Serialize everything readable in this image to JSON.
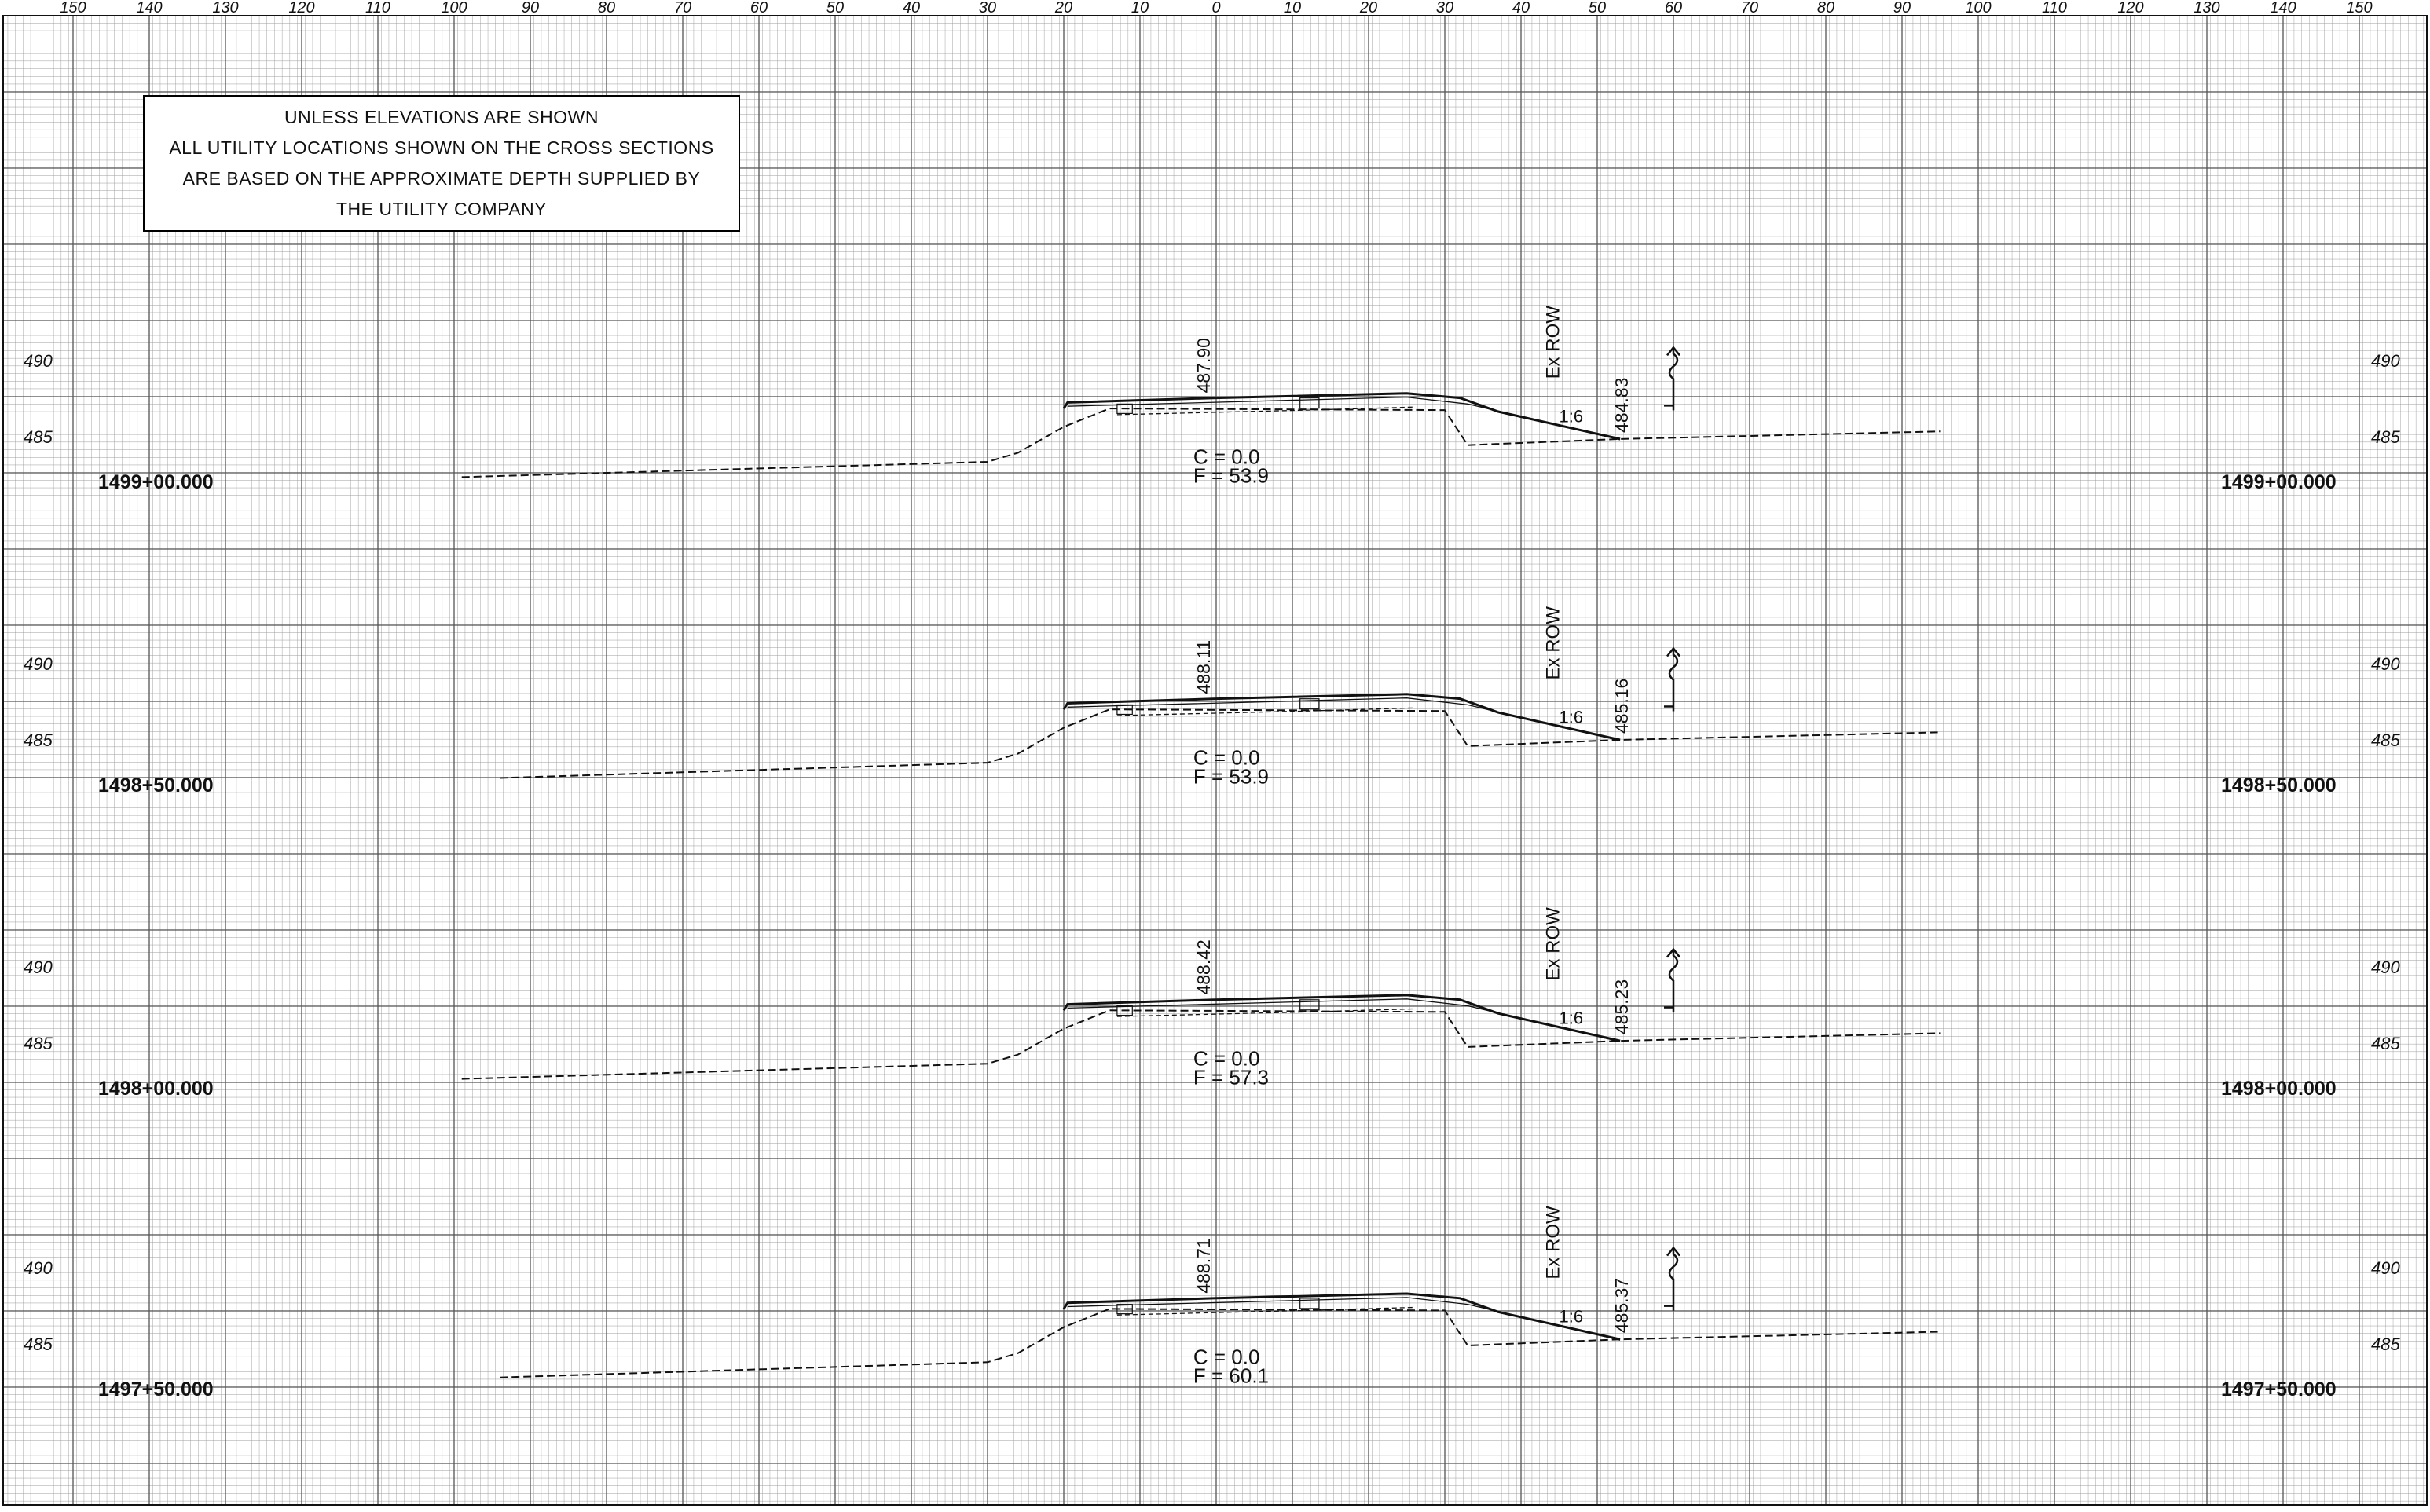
{
  "offset_axis": {
    "top_labels": [
      "150",
      "140",
      "130",
      "120",
      "110",
      "100",
      "90",
      "80",
      "70",
      "60",
      "50",
      "40",
      "30",
      "20",
      "10",
      "0",
      "10",
      "20",
      "30",
      "40",
      "50",
      "60",
      "70",
      "80",
      "90",
      "100",
      "110",
      "120",
      "130",
      "140",
      "150"
    ]
  },
  "note": {
    "lines": [
      "UNLESS ELEVATIONS ARE SHOWN",
      "ALL UTILITY LOCATIONS SHOWN ON THE CROSS SECTIONS",
      "ARE BASED ON THE APPROXIMATE DEPTH SUPPLIED BY",
      "THE UTILITY COMPANY"
    ]
  },
  "sections": [
    {
      "station": "1499+00.000",
      "elev_labels": [
        "490",
        "485"
      ],
      "cl_elevation": "487.90",
      "toe_elevation": "484.83",
      "row_label": "Ex ROW",
      "slope_label": "1:6",
      "cut_label": "C = 0.0",
      "fill_label": "F = 53.9"
    },
    {
      "station": "1498+50.000",
      "elev_labels": [
        "490",
        "485"
      ],
      "cl_elevation": "488.11",
      "toe_elevation": "485.16",
      "row_label": "Ex ROW",
      "slope_label": "1:6",
      "cut_label": "C = 0.0",
      "fill_label": "F = 53.9"
    },
    {
      "station": "1498+00.000",
      "elev_labels": [
        "490",
        "485"
      ],
      "cl_elevation": "488.42",
      "toe_elevation": "485.23",
      "row_label": "Ex ROW",
      "slope_label": "1:6",
      "cut_label": "C = 0.0",
      "fill_label": "F = 57.3"
    },
    {
      "station": "1497+50.000",
      "elev_labels": [
        "490",
        "485"
      ],
      "cl_elevation": "488.71",
      "toe_elevation": "485.37",
      "row_label": "Ex ROW",
      "slope_label": "1:6",
      "cut_label": "C = 0.0",
      "fill_label": "F = 60.1"
    }
  ],
  "colors": {
    "paper": "#ffffff",
    "grid_minor": "#9a9a9a",
    "grid_major": "#555555",
    "ink": "#111111"
  }
}
